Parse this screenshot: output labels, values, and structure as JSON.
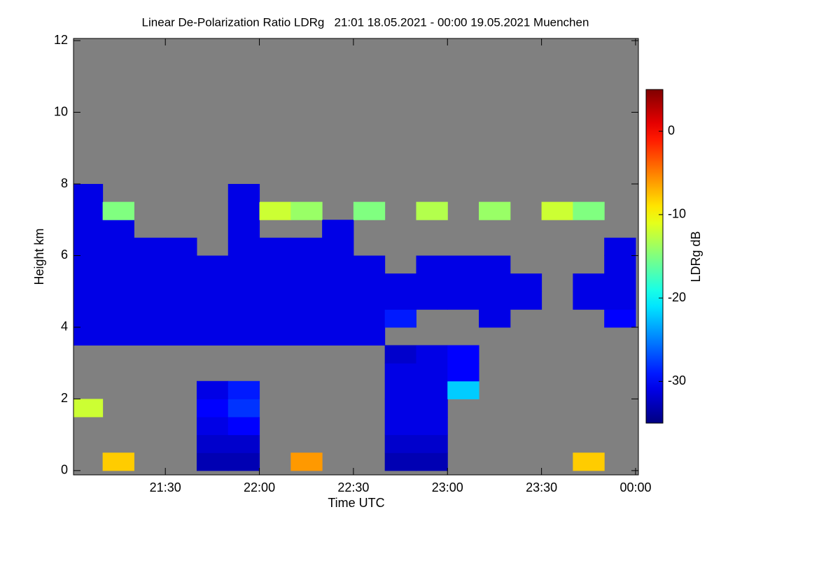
{
  "chart_data": {
    "type": "heatmap",
    "title": "Linear De-Polarization Ratio LDRg   21:01 18.05.2021 - 00:00 19.05.2021 Muenchen",
    "x_label": "Time UTC",
    "y_label": "Height km",
    "colorbar_label": "LDRg dB",
    "colormap": "jet",
    "nodata_color": "#808080",
    "xlim": [
      21.0117,
      24.015
    ],
    "ylim": [
      -0.12,
      12.06
    ],
    "zlim": [
      -35,
      5
    ],
    "xticks": [
      {
        "value": 21.5,
        "label": "21:30"
      },
      {
        "value": 22,
        "label": "22:00"
      },
      {
        "value": 22.5,
        "label": "22:30"
      },
      {
        "value": 23,
        "label": "23:00"
      },
      {
        "value": 23.5,
        "label": "23:30"
      },
      {
        "value": 24,
        "label": "00:00"
      }
    ],
    "yticks": [
      0,
      2,
      4,
      6,
      8,
      10,
      12
    ],
    "zticks": [
      0,
      -10,
      -20,
      -30
    ],
    "x": [
      21.0833,
      21.25,
      21.4167,
      21.5833,
      21.75,
      21.9167,
      22.0833,
      22.25,
      22.4167,
      22.5833,
      22.75,
      22.9167,
      23.0833,
      23.25,
      23.4167,
      23.5833,
      23.75,
      23.9167
    ],
    "y": [
      0.25,
      0.75,
      1.25,
      1.75,
      2.25,
      2.75,
      3.25,
      3.75,
      4.25,
      4.75,
      5.25,
      5.75,
      6.25,
      6.75,
      7.25,
      7.75
    ],
    "z": [
      [
        null,
        -8,
        null,
        null,
        -33,
        -33,
        null,
        -6,
        null,
        null,
        -33,
        -33,
        null,
        null,
        null,
        null,
        -8,
        null
      ],
      [
        null,
        null,
        null,
        null,
        -32,
        -32,
        null,
        null,
        null,
        null,
        -32,
        -32,
        null,
        null,
        null,
        null,
        null,
        null
      ],
      [
        null,
        null,
        null,
        null,
        -31,
        -30,
        null,
        null,
        null,
        null,
        -31,
        -31,
        null,
        null,
        null,
        null,
        null,
        null
      ],
      [
        -12,
        null,
        null,
        null,
        -30,
        -28,
        null,
        null,
        null,
        null,
        -31,
        -31,
        null,
        null,
        null,
        null,
        null,
        null
      ],
      [
        null,
        null,
        null,
        null,
        -31,
        -29,
        null,
        null,
        null,
        null,
        -31,
        -31,
        -22,
        null,
        null,
        null,
        null,
        null
      ],
      [
        null,
        null,
        null,
        null,
        null,
        null,
        null,
        null,
        null,
        null,
        -31,
        -31,
        -30,
        null,
        null,
        null,
        null,
        null
      ],
      [
        null,
        null,
        null,
        null,
        null,
        null,
        null,
        null,
        null,
        null,
        -32,
        -31,
        -30,
        null,
        null,
        null,
        null,
        null
      ],
      [
        -31,
        -31,
        -31,
        -31,
        -31,
        -31,
        -31,
        -31,
        -31,
        -31,
        null,
        null,
        null,
        null,
        null,
        null,
        null,
        null
      ],
      [
        -31,
        -31,
        -31,
        -31,
        -31,
        -31,
        -31,
        -31,
        -31,
        -31,
        -29,
        null,
        null,
        -31,
        null,
        null,
        null,
        -30
      ],
      [
        -31,
        -31,
        -31,
        -31,
        -31,
        -31,
        -31,
        -31,
        -31,
        -31,
        -31,
        -31,
        -31,
        -31,
        -31,
        null,
        -31,
        -31
      ],
      [
        -31,
        -31,
        -31,
        -31,
        -31,
        -31,
        -31,
        -31,
        -31,
        -31,
        -31,
        -31,
        -31,
        -31,
        -31,
        null,
        -31,
        -31
      ],
      [
        -31,
        -31,
        -31,
        -31,
        -31,
        -31,
        -31,
        -31,
        -31,
        -31,
        null,
        -31,
        -31,
        -31,
        null,
        null,
        null,
        -31
      ],
      [
        -31,
        -31,
        -31,
        -31,
        null,
        -31,
        -31,
        -31,
        -31,
        null,
        null,
        null,
        null,
        null,
        null,
        null,
        null,
        -31
      ],
      [
        -31,
        -31,
        null,
        null,
        null,
        -31,
        null,
        null,
        -31,
        null,
        null,
        null,
        null,
        null,
        null,
        null,
        null,
        null
      ],
      [
        -31,
        -15,
        null,
        null,
        null,
        -31,
        -12,
        -14,
        null,
        -15,
        null,
        -13,
        null,
        -14,
        null,
        -12,
        -15,
        null
      ],
      [
        -31,
        null,
        null,
        null,
        null,
        -31,
        null,
        null,
        null,
        null,
        null,
        null,
        null,
        null,
        null,
        null,
        null,
        null
      ]
    ]
  }
}
